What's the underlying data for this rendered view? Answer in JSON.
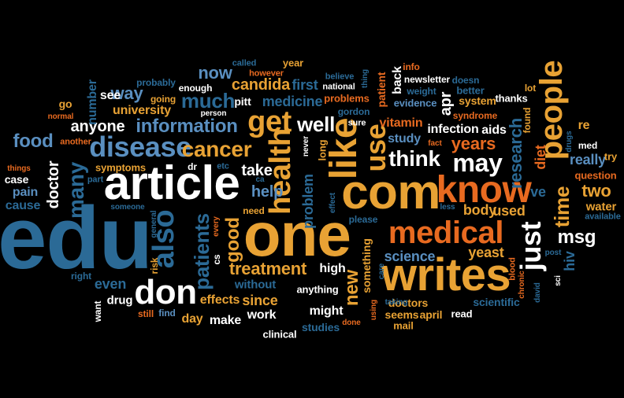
{
  "colors": {
    "background": "#000000",
    "palette": [
      "#ffffff",
      "#e8a234",
      "#c8641e",
      "#2b6a96",
      "#5a8fc0",
      "#e86a20",
      "#d24a14",
      "#8fb6d8"
    ]
  },
  "words": [
    {
      "text": "edu",
      "color": "#2b6a96",
      "vertical": false
    },
    {
      "text": "one",
      "color": "#e8a234",
      "vertical": false
    },
    {
      "text": "com",
      "color": "#e8a234",
      "vertical": false
    },
    {
      "text": "article",
      "color": "#ffffff",
      "vertical": false
    },
    {
      "text": "writes",
      "color": "#e8a234",
      "vertical": false
    },
    {
      "text": "know",
      "color": "#e86a20",
      "vertical": false
    },
    {
      "text": "like",
      "color": "#e8a234",
      "vertical": true
    },
    {
      "text": "medical",
      "color": "#e86a20",
      "vertical": false
    },
    {
      "text": "people",
      "color": "#e8a234",
      "vertical": true
    },
    {
      "text": "health",
      "color": "#e8a234",
      "vertical": true
    },
    {
      "text": "don",
      "color": "#ffffff",
      "vertical": false
    },
    {
      "text": "also",
      "color": "#2b6a96",
      "vertical": true
    },
    {
      "text": "get",
      "color": "#e8a234",
      "vertical": false
    },
    {
      "text": "disease",
      "color": "#5a8fc0",
      "vertical": false
    },
    {
      "text": "use",
      "color": "#e8a234",
      "vertical": true
    },
    {
      "text": "just",
      "color": "#ffffff",
      "vertical": true
    },
    {
      "text": "may",
      "color": "#ffffff",
      "vertical": false
    },
    {
      "text": "think",
      "color": "#ffffff",
      "vertical": false
    },
    {
      "text": "cancer",
      "color": "#e8a234",
      "vertical": false
    },
    {
      "text": "patients",
      "color": "#2b6a96",
      "vertical": true
    },
    {
      "text": "many",
      "color": "#2b6a96",
      "vertical": true
    },
    {
      "text": "information",
      "color": "#5a8fc0",
      "vertical": false
    },
    {
      "text": "much",
      "color": "#2b6a96",
      "vertical": false
    },
    {
      "text": "time",
      "color": "#e8a234",
      "vertical": true
    },
    {
      "text": "well",
      "color": "#ffffff",
      "vertical": false
    },
    {
      "text": "good",
      "color": "#e8a234",
      "vertical": true
    },
    {
      "text": "treatment",
      "color": "#e8a234",
      "vertical": false
    },
    {
      "text": "research",
      "color": "#2b6a96",
      "vertical": true
    },
    {
      "text": "msg",
      "color": "#ffffff",
      "vertical": false
    },
    {
      "text": "years",
      "color": "#e86a20",
      "vertical": false
    },
    {
      "text": "new",
      "color": "#e8a234",
      "vertical": true
    },
    {
      "text": "food",
      "color": "#5a8fc0",
      "vertical": false
    },
    {
      "text": "doctor",
      "color": "#ffffff",
      "vertical": true
    },
    {
      "text": "anyone",
      "color": "#ffffff",
      "vertical": false
    },
    {
      "text": "way",
      "color": "#5a8fc0",
      "vertical": false
    },
    {
      "text": "now",
      "color": "#5a8fc0",
      "vertical": false
    },
    {
      "text": "two",
      "color": "#e8a234",
      "vertical": false
    },
    {
      "text": "help",
      "color": "#5a8fc0",
      "vertical": false
    },
    {
      "text": "take",
      "color": "#ffffff",
      "vertical": false
    },
    {
      "text": "candida",
      "color": "#e8a234",
      "vertical": false
    },
    {
      "text": "medicine",
      "color": "#2b6a96",
      "vertical": false
    },
    {
      "text": "first",
      "color": "#2b6a96",
      "vertical": false
    },
    {
      "text": "problem",
      "color": "#2b6a96",
      "vertical": true
    },
    {
      "text": "science",
      "color": "#5a8fc0",
      "vertical": false
    },
    {
      "text": "yeast",
      "color": "#e8a234",
      "vertical": false
    },
    {
      "text": "used",
      "color": "#e8a234",
      "vertical": false
    },
    {
      "text": "body",
      "color": "#e8a234",
      "vertical": false
    },
    {
      "text": "really",
      "color": "#5a8fc0",
      "vertical": false
    },
    {
      "text": "ve",
      "color": "#2b6a96",
      "vertical": false
    },
    {
      "text": "apr",
      "color": "#ffffff",
      "vertical": true
    },
    {
      "text": "diet",
      "color": "#e86a20",
      "vertical": true
    },
    {
      "text": "hiv",
      "color": "#2b6a96",
      "vertical": true
    },
    {
      "text": "since",
      "color": "#e8a234",
      "vertical": false
    },
    {
      "text": "even",
      "color": "#2b6a96",
      "vertical": false
    },
    {
      "text": "effects",
      "color": "#e8a234",
      "vertical": false
    },
    {
      "text": "day",
      "color": "#e8a234",
      "vertical": false
    },
    {
      "text": "make",
      "color": "#ffffff",
      "vertical": false
    },
    {
      "text": "work",
      "color": "#ffffff",
      "vertical": false
    },
    {
      "text": "might",
      "color": "#ffffff",
      "vertical": false
    },
    {
      "text": "high",
      "color": "#ffffff",
      "vertical": false
    },
    {
      "text": "something",
      "color": "#e8a234",
      "vertical": true
    },
    {
      "text": "vitamin",
      "color": "#e86a20",
      "vertical": false
    },
    {
      "text": "study",
      "color": "#5a8fc0",
      "vertical": false
    },
    {
      "text": "infection",
      "color": "#ffffff",
      "vertical": false
    },
    {
      "text": "aids",
      "color": "#ffffff",
      "vertical": false
    },
    {
      "text": "number",
      "color": "#2b6a96",
      "vertical": true
    },
    {
      "text": "see",
      "color": "#ffffff",
      "vertical": false
    },
    {
      "text": "university",
      "color": "#e8a234",
      "vertical": false
    },
    {
      "text": "pitt",
      "color": "#ffffff",
      "vertical": false
    },
    {
      "text": "problems",
      "color": "#e86a20",
      "vertical": false
    },
    {
      "text": "evidence",
      "color": "#5a8fc0",
      "vertical": false
    },
    {
      "text": "back",
      "color": "#ffffff",
      "vertical": true
    },
    {
      "text": "pain",
      "color": "#5a8fc0",
      "vertical": false
    },
    {
      "text": "cause",
      "color": "#2b6a96",
      "vertical": false
    },
    {
      "text": "case",
      "color": "#ffffff",
      "vertical": false
    },
    {
      "text": "symptoms",
      "color": "#e8a234",
      "vertical": false
    },
    {
      "text": "drug",
      "color": "#ffffff",
      "vertical": false
    },
    {
      "text": "without",
      "color": "#2b6a96",
      "vertical": false
    },
    {
      "text": "anything",
      "color": "#ffffff",
      "vertical": false
    },
    {
      "text": "studies",
      "color": "#2b6a96",
      "vertical": false
    },
    {
      "text": "clinical",
      "color": "#ffffff",
      "vertical": false
    },
    {
      "text": "doctors",
      "color": "#e8a234",
      "vertical": false
    },
    {
      "text": "seems",
      "color": "#e8a234",
      "vertical": false
    },
    {
      "text": "april",
      "color": "#e8a234",
      "vertical": false
    },
    {
      "text": "read",
      "color": "#ffffff",
      "vertical": false
    },
    {
      "text": "scientific",
      "color": "#2b6a96",
      "vertical": false
    },
    {
      "text": "mail",
      "color": "#e8a234",
      "vertical": false
    },
    {
      "text": "water",
      "color": "#e8a234",
      "vertical": false
    },
    {
      "text": "question",
      "color": "#e86a20",
      "vertical": false
    },
    {
      "text": "try",
      "color": "#e8a234",
      "vertical": false
    },
    {
      "text": "available",
      "color": "#2b6a96",
      "vertical": false
    },
    {
      "text": "med",
      "color": "#ffffff",
      "vertical": false
    },
    {
      "text": "re",
      "color": "#e8a234",
      "vertical": false
    },
    {
      "text": "thanks",
      "color": "#ffffff",
      "vertical": false
    },
    {
      "text": "system",
      "color": "#e8a234",
      "vertical": false
    },
    {
      "text": "better",
      "color": "#2b6a96",
      "vertical": false
    },
    {
      "text": "syndrome",
      "color": "#e86a20",
      "vertical": false
    },
    {
      "text": "doesn",
      "color": "#2b6a96",
      "vertical": false
    },
    {
      "text": "newsletter",
      "color": "#ffffff",
      "vertical": false
    },
    {
      "text": "info",
      "color": "#e86a20",
      "vertical": false
    },
    {
      "text": "weight",
      "color": "#2b6a96",
      "vertical": false
    },
    {
      "text": "patient",
      "color": "#e86a20",
      "vertical": true
    },
    {
      "text": "thing",
      "color": "#2b6a96",
      "vertical": true
    },
    {
      "text": "lot",
      "color": "#e8a234",
      "vertical": false
    },
    {
      "text": "found",
      "color": "#e8a234",
      "vertical": true
    },
    {
      "text": "drugs",
      "color": "#2b6a96",
      "vertical": true
    },
    {
      "text": "year",
      "color": "#e8a234",
      "vertical": false
    },
    {
      "text": "called",
      "color": "#2b6a96",
      "vertical": false
    },
    {
      "text": "however",
      "color": "#e86a20",
      "vertical": false
    },
    {
      "text": "believe",
      "color": "#2b6a96",
      "vertical": false
    },
    {
      "text": "national",
      "color": "#ffffff",
      "vertical": false
    },
    {
      "text": "gordon",
      "color": "#2b6a96",
      "vertical": false
    },
    {
      "text": "sure",
      "color": "#ffffff",
      "vertical": false
    },
    {
      "text": "probably",
      "color": "#2b6a96",
      "vertical": false
    },
    {
      "text": "enough",
      "color": "#ffffff",
      "vertical": false
    },
    {
      "text": "going",
      "color": "#e8a234",
      "vertical": false
    },
    {
      "text": "person",
      "color": "#ffffff",
      "vertical": false
    },
    {
      "text": "go",
      "color": "#e8a234",
      "vertical": false
    },
    {
      "text": "normal",
      "color": "#e86a20",
      "vertical": false
    },
    {
      "text": "another",
      "color": "#e86a20",
      "vertical": false
    },
    {
      "text": "things",
      "color": "#e86a20",
      "vertical": false
    },
    {
      "text": "part",
      "color": "#2b6a96",
      "vertical": false
    },
    {
      "text": "dr",
      "color": "#ffffff",
      "vertical": false
    },
    {
      "text": "etc",
      "color": "#2b6a96",
      "vertical": false
    },
    {
      "text": "ca",
      "color": "#2b6a96",
      "vertical": false
    },
    {
      "text": "need",
      "color": "#e8a234",
      "vertical": false
    },
    {
      "text": "someone",
      "color": "#2b6a96",
      "vertical": false
    },
    {
      "text": "general",
      "color": "#2b6a96",
      "vertical": true
    },
    {
      "text": "every",
      "color": "#e86a20",
      "vertical": true
    },
    {
      "text": "cs",
      "color": "#ffffff",
      "vertical": true
    },
    {
      "text": "risk",
      "color": "#e8a234",
      "vertical": true
    },
    {
      "text": "right",
      "color": "#2b6a96",
      "vertical": false
    },
    {
      "text": "want",
      "color": "#ffffff",
      "vertical": true
    },
    {
      "text": "still",
      "color": "#e86a20",
      "vertical": false
    },
    {
      "text": "find",
      "color": "#5a8fc0",
      "vertical": false
    },
    {
      "text": "never",
      "color": "#ffffff",
      "vertical": true
    },
    {
      "text": "long",
      "color": "#e8a234",
      "vertical": true
    },
    {
      "text": "effect",
      "color": "#2b6a96",
      "vertical": true
    },
    {
      "text": "please",
      "color": "#2b6a96",
      "vertical": false
    },
    {
      "text": "less",
      "color": "#2b6a96",
      "vertical": false
    },
    {
      "text": "fact",
      "color": "#e86a20",
      "vertical": false
    },
    {
      "text": "care",
      "color": "#2b6a96",
      "vertical": true
    },
    {
      "text": "using",
      "color": "#e86a20",
      "vertical": true
    },
    {
      "text": "done",
      "color": "#e86a20",
      "vertical": false
    },
    {
      "text": "taking",
      "color": "#2b6a96",
      "vertical": false
    },
    {
      "text": "blood",
      "color": "#e86a20",
      "vertical": true
    },
    {
      "text": "chronic",
      "color": "#e86a20",
      "vertical": true
    },
    {
      "text": "post",
      "color": "#2b6a96",
      "vertical": false
    },
    {
      "text": "david",
      "color": "#2b6a96",
      "vertical": true
    },
    {
      "text": "sci",
      "color": "#ffffff",
      "vertical": true
    }
  ]
}
